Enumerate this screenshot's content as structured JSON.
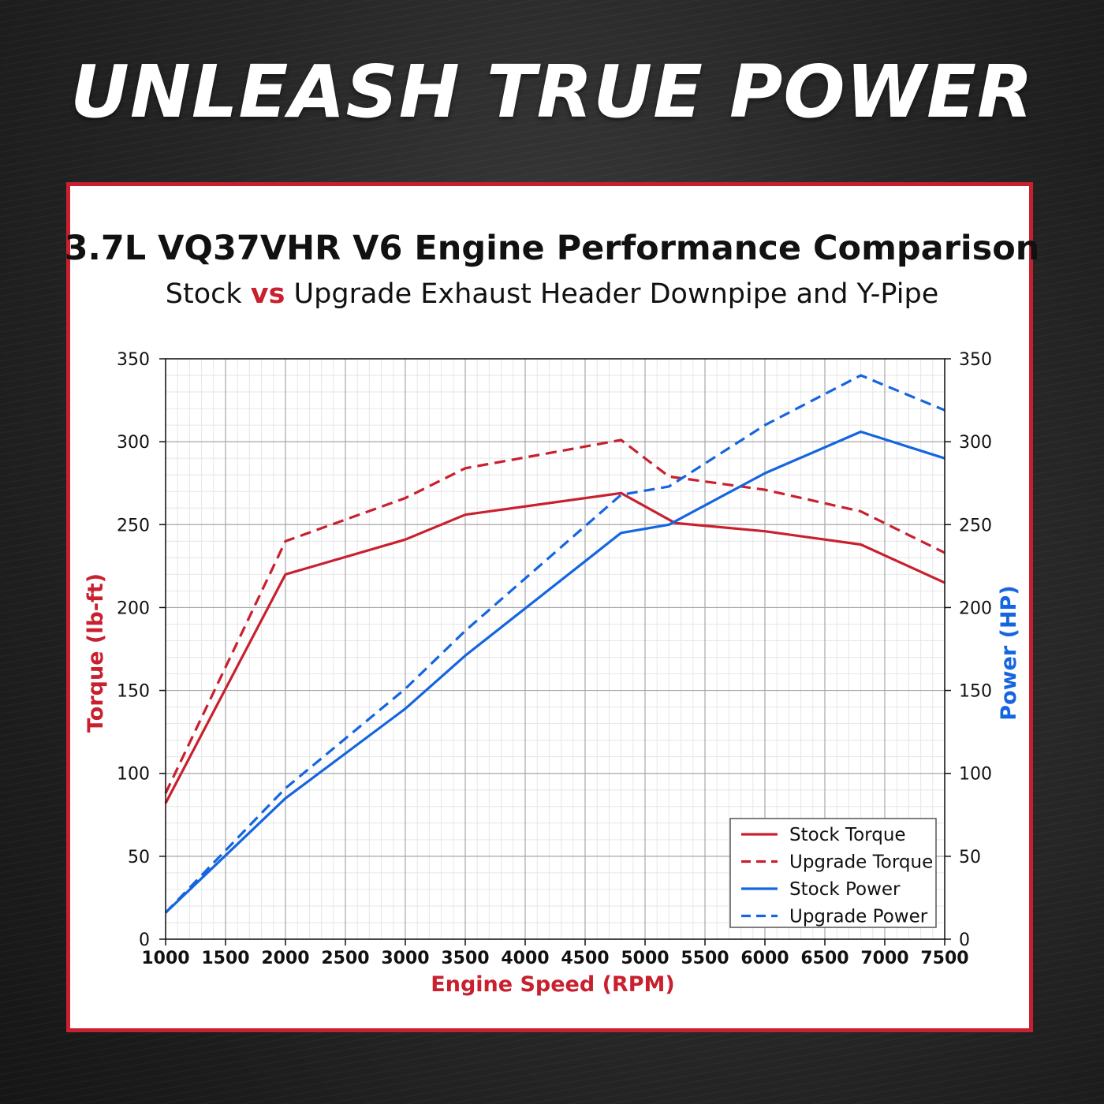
{
  "headline": "UNLEASH TRUE POWER",
  "title_text": "3.7L VQ37VHR V6 Engine Performance Comparison",
  "subtitle": {
    "part1": "Stock ",
    "vs": "vs",
    "part2": " Upgrade Exhaust Header Downpipe and Y-Pipe"
  },
  "colors": {
    "torque": "#c8202e",
    "power": "#1565e0",
    "accent_border": "#c8202e"
  },
  "chart_data": {
    "type": "line",
    "xlabel": "Engine Speed (RPM)",
    "ylabel_left": "Torque (lb-ft)",
    "ylabel_right": "Power (HP)",
    "xlim": [
      1000,
      7500
    ],
    "ylim_left": [
      0,
      350
    ],
    "ylim_right": [
      0,
      350
    ],
    "x_ticks": [
      1000,
      1500,
      2000,
      2500,
      3000,
      3500,
      4000,
      4500,
      5000,
      5500,
      6000,
      6500,
      7000,
      7500
    ],
    "y_ticks": [
      0,
      50,
      100,
      150,
      200,
      250,
      300,
      350
    ],
    "grid": true,
    "legend_position": "bottom-right",
    "series": [
      {
        "name": "Stock Torque",
        "axis": "left",
        "style": "solid",
        "color": "#c8202e",
        "points": [
          [
            1000,
            82
          ],
          [
            2000,
            220
          ],
          [
            3000,
            241
          ],
          [
            3500,
            256
          ],
          [
            4800,
            269
          ],
          [
            5250,
            251
          ],
          [
            6000,
            246
          ],
          [
            6800,
            238
          ],
          [
            7500,
            215
          ]
        ]
      },
      {
        "name": "Upgrade Torque",
        "axis": "left",
        "style": "dashed",
        "color": "#c8202e",
        "points": [
          [
            1000,
            88
          ],
          [
            2000,
            240
          ],
          [
            3000,
            266
          ],
          [
            3500,
            284
          ],
          [
            4800,
            301
          ],
          [
            5200,
            279
          ],
          [
            6000,
            271
          ],
          [
            6800,
            258
          ],
          [
            7500,
            233
          ]
        ]
      },
      {
        "name": "Stock Power",
        "axis": "right",
        "style": "solid",
        "color": "#1565e0",
        "points": [
          [
            1000,
            16
          ],
          [
            2000,
            85
          ],
          [
            3000,
            139
          ],
          [
            3500,
            171
          ],
          [
            4800,
            245
          ],
          [
            5200,
            250
          ],
          [
            6000,
            281
          ],
          [
            6800,
            306
          ],
          [
            7500,
            290
          ]
        ]
      },
      {
        "name": "Upgrade Power",
        "axis": "right",
        "style": "dashed",
        "color": "#1565e0",
        "points": [
          [
            1000,
            16
          ],
          [
            2000,
            91
          ],
          [
            3000,
            151
          ],
          [
            3500,
            186
          ],
          [
            4800,
            268
          ],
          [
            5200,
            273
          ],
          [
            6000,
            310
          ],
          [
            6800,
            340
          ],
          [
            7500,
            319
          ]
        ]
      }
    ]
  }
}
